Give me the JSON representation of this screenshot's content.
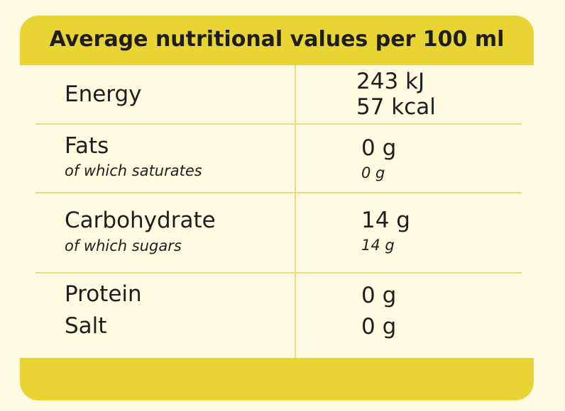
{
  "header": {
    "title": "Average nutritional values per 100 ml"
  },
  "table": {
    "rows": [
      {
        "label": "Energy",
        "values": [
          "243 kJ",
          "57 kcal"
        ]
      },
      {
        "label": "Fats",
        "value": "0 g",
        "detail": {
          "label": "of which saturates",
          "value": "0 g"
        }
      },
      {
        "label": "Carbohydrate",
        "value": "14 g",
        "detail": {
          "label": "of which sugars",
          "value": "14 g"
        }
      },
      {
        "labels": [
          "Protein",
          "Salt"
        ],
        "values": [
          "0 g",
          "0 g"
        ]
      }
    ]
  }
}
